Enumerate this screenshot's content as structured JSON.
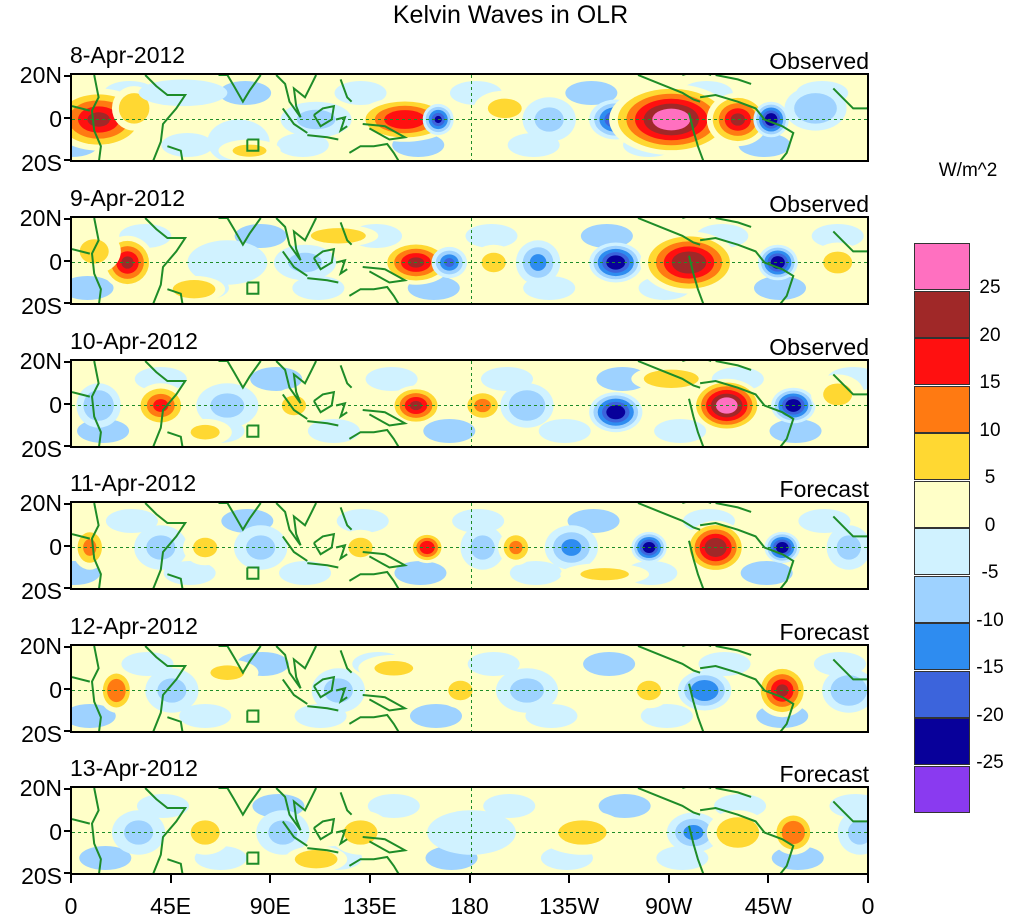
{
  "title": "Kelvin Waves in OLR",
  "colors": {
    "pos25": "#ff70c0",
    "pos20": "#a02828",
    "pos15": "#ff1010",
    "pos10": "#ff7a12",
    "pos5": "#ffd832",
    "pos0": "#ffffc8",
    "neg0": "#d0f2ff",
    "neg5": "#9ed2ff",
    "neg10": "#2e8cf0",
    "neg15": "#3c64dc",
    "neg20": "#08009a",
    "neg25": "#8a3af0",
    "coast": "#1e8c28"
  },
  "panels": [
    {
      "date": "8-Apr-2012",
      "status": "Observed"
    },
    {
      "date": "9-Apr-2012",
      "status": "Observed"
    },
    {
      "date": "10-Apr-2012",
      "status": "Observed"
    },
    {
      "date": "11-Apr-2012",
      "status": "Forecast"
    },
    {
      "date": "12-Apr-2012",
      "status": "Forecast"
    },
    {
      "date": "13-Apr-2012",
      "status": "Forecast"
    }
  ],
  "y_labels": {
    "north": "20N",
    "equator": "0",
    "south": "20S"
  },
  "x_labels": [
    "0",
    "45E",
    "90E",
    "135E",
    "180",
    "135W",
    "90W",
    "45W",
    "0"
  ],
  "colorbar": {
    "title": "W/m^2",
    "levels": [
      "25",
      "20",
      "15",
      "10",
      "5",
      "0",
      "-5",
      "-10",
      "-15",
      "-20",
      "-25"
    ]
  }
}
